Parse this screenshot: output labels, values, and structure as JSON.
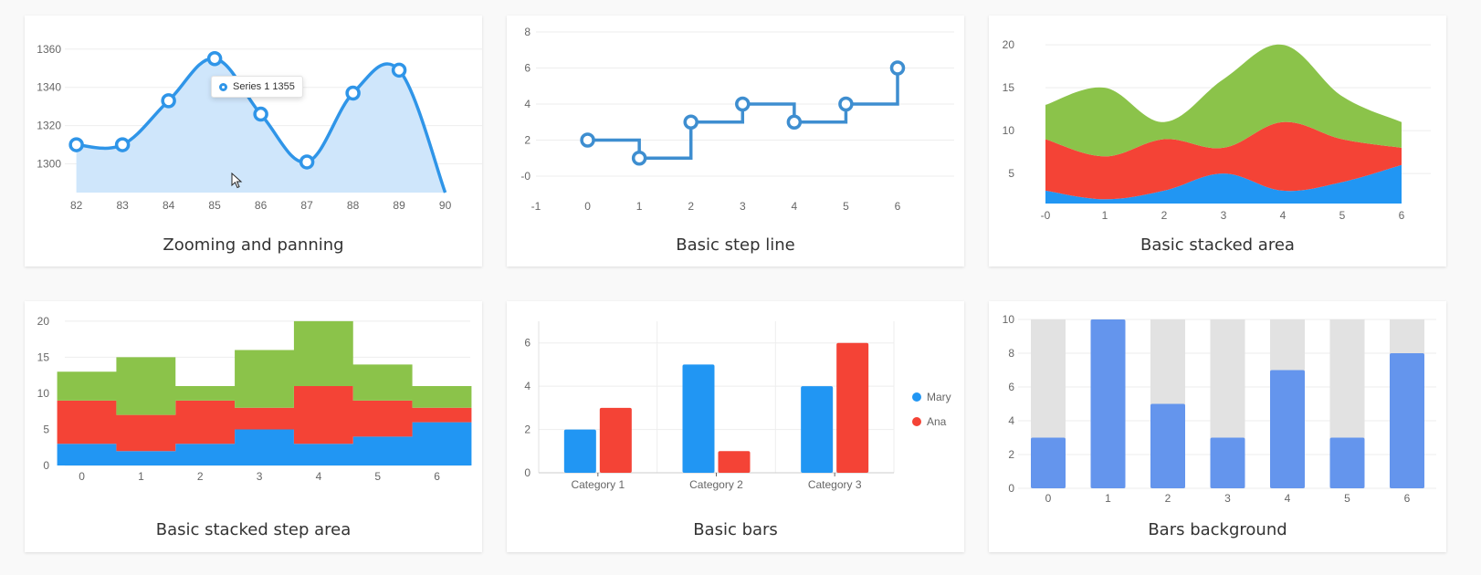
{
  "colors": {
    "blue": "#2196f3",
    "red": "#f44336",
    "green": "#8bc34a",
    "bar_blue": "#6495ed",
    "bar_bg": "#e2e2e2",
    "line_blue": "#2f95e8",
    "area_blue": "#cfe6fb",
    "step_blue": "#3e8ed0"
  },
  "cards": {
    "zoom": {
      "title": "Zooming and panning"
    },
    "step": {
      "title": "Basic step line"
    },
    "stacked_area": {
      "title": "Basic stacked area"
    },
    "stacked_step": {
      "title": "Basic stacked step area"
    },
    "bars": {
      "title": "Basic bars"
    },
    "bars_bg": {
      "title": "Bars background"
    }
  },
  "tooltip": {
    "series": "Series 1",
    "value": "1355",
    "text": "Series 1 1355"
  },
  "chart_data": [
    {
      "id": "zoom",
      "type": "line",
      "area": true,
      "smooth": true,
      "title": "Zooming and panning",
      "x": [
        82,
        83,
        84,
        85,
        86,
        87,
        88,
        89,
        90
      ],
      "series": [
        {
          "values": [
            1310,
            1310,
            1333,
            1355,
            1326,
            1301,
            1337,
            1349,
            1285
          ]
        }
      ],
      "xticks": [
        "82",
        "83",
        "84",
        "85",
        "86",
        "87",
        "88",
        "89",
        "90"
      ],
      "yticks": [
        "1300",
        "1320",
        "1340",
        "1360"
      ],
      "ylim": [
        1285,
        1368
      ],
      "xlim": [
        81.75,
        90.8
      ]
    },
    {
      "id": "step",
      "type": "line",
      "step": true,
      "title": "Basic step line",
      "x": [
        0,
        1,
        2,
        3,
        4,
        5,
        6
      ],
      "series": [
        {
          "values": [
            2,
            1,
            3,
            4,
            3,
            4,
            6
          ]
        }
      ],
      "xticks": [
        "-1",
        "0",
        "1",
        "2",
        "3",
        "4",
        "5",
        "6"
      ],
      "yticks": [
        "-0",
        "2",
        "4",
        "6",
        "8"
      ],
      "xlim": [
        -1,
        6.8
      ],
      "ylim": [
        0,
        8
      ]
    },
    {
      "id": "stacked_area",
      "type": "area",
      "stacked": true,
      "smooth": true,
      "title": "Basic stacked area",
      "x": [
        0,
        1,
        2,
        3,
        4,
        5,
        6
      ],
      "series": [
        {
          "values": [
            3,
            2,
            3,
            5,
            3,
            4,
            6
          ]
        },
        {
          "values": [
            6,
            5,
            6,
            3,
            8,
            5,
            2
          ]
        },
        {
          "values": [
            4,
            8,
            2,
            8,
            9,
            5,
            3
          ]
        }
      ],
      "xticks": [
        "-0",
        "1",
        "2",
        "3",
        "4",
        "5",
        "6"
      ],
      "yticks": [
        "5",
        "10",
        "15",
        "20"
      ],
      "ylim": [
        1.5,
        21.5
      ],
      "xlim": [
        0,
        6.4
      ]
    },
    {
      "id": "stacked_step",
      "type": "area",
      "stacked": true,
      "step": true,
      "title": "Basic stacked step area",
      "x": [
        0,
        1,
        2,
        3,
        4,
        5,
        6
      ],
      "series": [
        {
          "values": [
            3,
            2,
            3,
            5,
            3,
            4,
            6
          ]
        },
        {
          "values": [
            6,
            5,
            6,
            3,
            8,
            5,
            2
          ]
        },
        {
          "values": [
            4,
            8,
            2,
            8,
            9,
            5,
            3
          ]
        }
      ],
      "xticks": [
        "0",
        "1",
        "2",
        "3",
        "4",
        "5",
        "6"
      ],
      "yticks": [
        "0",
        "5",
        "10",
        "15",
        "20"
      ],
      "ylim": [
        0,
        21
      ],
      "xlim": [
        -0.35,
        6.5
      ]
    },
    {
      "id": "bars",
      "type": "bar",
      "title": "Basic bars",
      "categories": [
        "Category 1",
        "Category 2",
        "Category 3"
      ],
      "series": [
        {
          "name": "Mary",
          "values": [
            2,
            5,
            4
          ]
        },
        {
          "name": "Ana",
          "values": [
            3,
            1,
            6
          ]
        }
      ],
      "yticks": [
        "0",
        "2",
        "4",
        "6"
      ],
      "ylim": [
        0,
        7
      ],
      "legend": "right"
    },
    {
      "id": "bars_bg",
      "type": "bar",
      "background": true,
      "title": "Bars background",
      "categories": [
        "0",
        "1",
        "2",
        "3",
        "4",
        "5",
        "6"
      ],
      "values": [
        3,
        10,
        5,
        3,
        7,
        3,
        8
      ],
      "max": 10,
      "yticks": [
        "0",
        "2",
        "4",
        "6",
        "8",
        "10"
      ],
      "ylim": [
        0,
        10
      ]
    }
  ]
}
